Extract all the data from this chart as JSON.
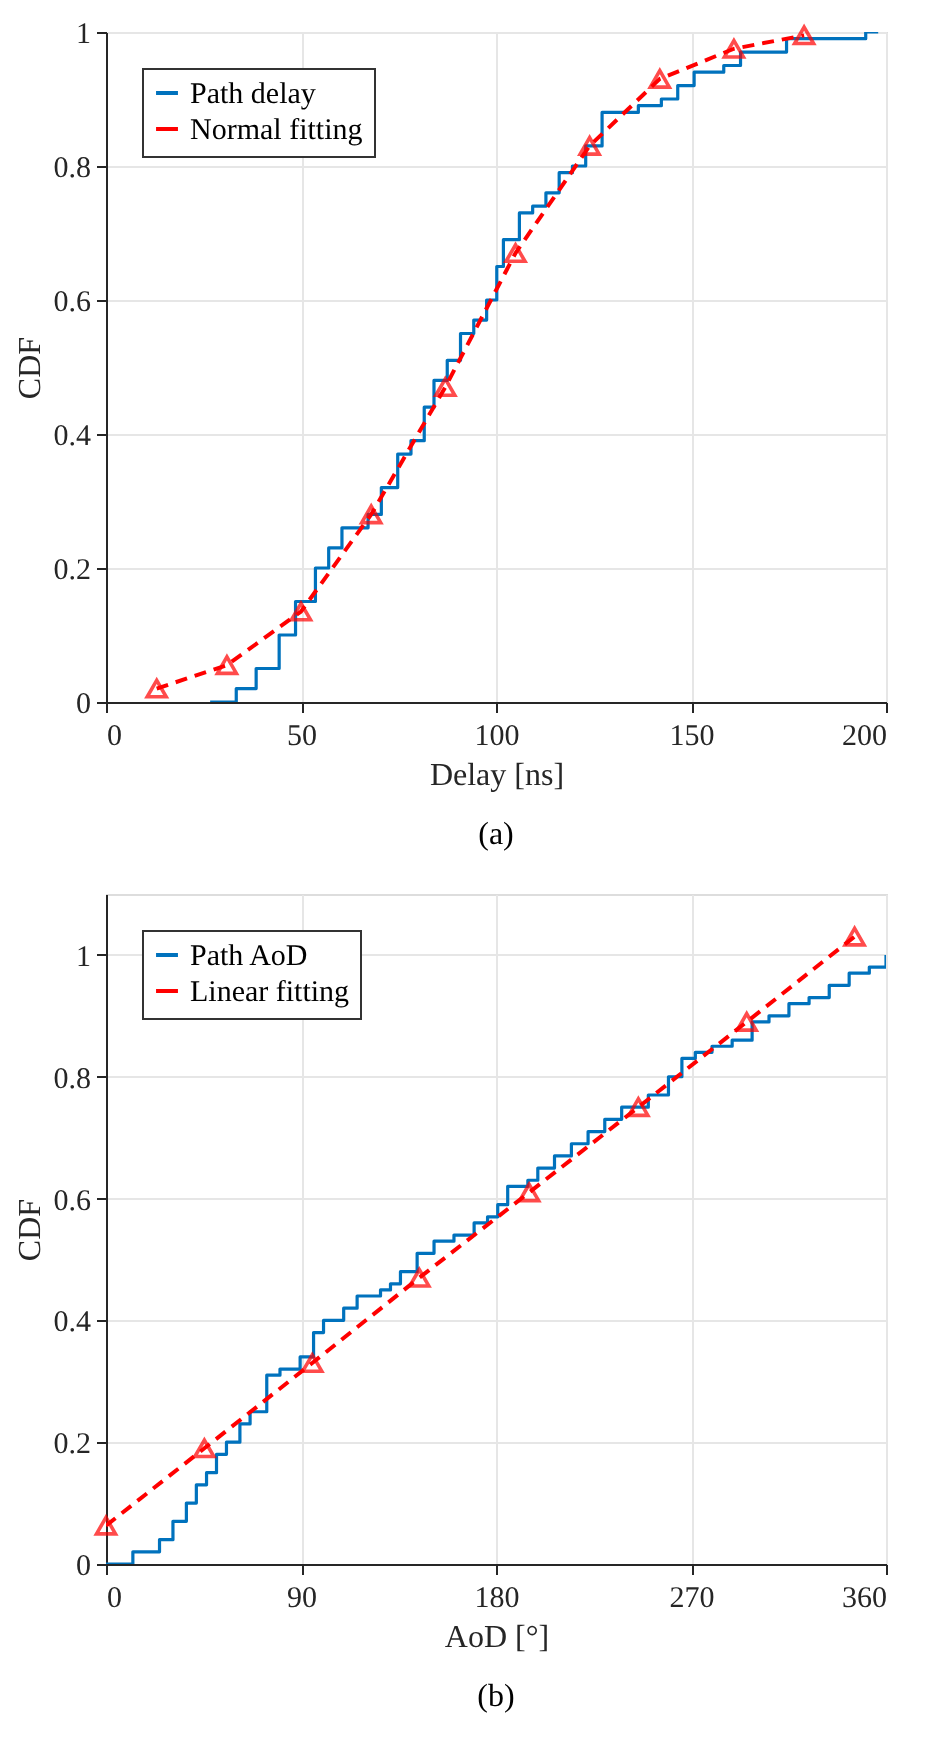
{
  "chart_data": [
    {
      "type": "line",
      "title": "(a)",
      "xlabel": "Delay [ns]",
      "ylabel": "CDF",
      "xlim": [
        0,
        200
      ],
      "xticks": [
        0,
        50,
        100,
        150,
        200
      ],
      "ylim": [
        0,
        1
      ],
      "yticks": [
        0,
        0.2,
        0.4,
        0.6,
        0.8,
        1
      ],
      "grid": true,
      "legend": "top left",
      "series": [
        {
          "name": "Path delay",
          "type": "step",
          "color": "#0072bd",
          "line_style": "solid",
          "marker": "none",
          "x": [
            26.7,
            33.4,
            38.5,
            44.4,
            48.6,
            53.7,
            57.1,
            60.5,
            63,
            67.2,
            70.6,
            74.8,
            78.2,
            81.6,
            84.1,
            87.5,
            90.9,
            94.3,
            97.6,
            100.2,
            101.9,
            106,
            109.4,
            112.8,
            116.2,
            119.6,
            123,
            127.2,
            131.4,
            136.5,
            142.4,
            146.6,
            150.8,
            158.4,
            162.7,
            170.3,
            174.5,
            190.5,
            194.8,
            198
          ],
          "values": [
            0,
            0.02,
            0.05,
            0.1,
            0.15,
            0.2,
            0.23,
            0.26,
            0.26,
            0.28,
            0.32,
            0.37,
            0.39,
            0.44,
            0.48,
            0.51,
            0.55,
            0.57,
            0.6,
            0.65,
            0.69,
            0.73,
            0.74,
            0.76,
            0.79,
            0.8,
            0.83,
            0.88,
            0.88,
            0.89,
            0.9,
            0.92,
            0.94,
            0.95,
            0.97,
            0.97,
            0.99,
            0.99,
            1,
            1
          ]
        },
        {
          "name": "Normal fitting",
          "color": "#ff0000",
          "line_style": "dashed",
          "marker": "triangle",
          "x": [
            13,
            31,
            50,
            68,
            87,
            105,
            124,
            142,
            161,
            179
          ],
          "values": [
            0.02,
            0.055,
            0.135,
            0.28,
            0.47,
            0.67,
            0.83,
            0.93,
            0.975,
            0.995
          ]
        }
      ]
    },
    {
      "type": "line",
      "title": "(b)",
      "xlabel": "AoD [°]",
      "ylabel": "CDF",
      "xlim": [
        0,
        360
      ],
      "xticks": [
        0,
        90,
        180,
        270,
        360
      ],
      "ylim": [
        0,
        1.1
      ],
      "yticks": [
        0,
        0.2,
        0.4,
        0.6,
        0.8,
        1
      ],
      "grid": true,
      "legend": "top left",
      "series": [
        {
          "name": "Path AoD",
          "type": "step",
          "color": "#0072bd",
          "line_style": "solid",
          "marker": "none",
          "x": [
            0,
            12.4,
            24.7,
            30.9,
            37.1,
            41.7,
            46.4,
            51,
            55.6,
            61.8,
            66.5,
            74.2,
            80.3,
            89.6,
            95.8,
            100.4,
            109.7,
            115.9,
            126.7,
            131.3,
            135.9,
            143.6,
            151.4,
            160.6,
            169.9,
            176.1,
            180.8,
            185.4,
            194.7,
            199.3,
            207,
            214.8,
            222.5,
            230.2,
            238,
            250.3,
            259.6,
            265.8,
            272,
            279.7,
            289,
            298.2,
            306,
            315.2,
            324.5,
            333.8,
            343,
            352.3,
            360
          ],
          "values": [
            0,
            0.02,
            0.04,
            0.07,
            0.1,
            0.13,
            0.15,
            0.18,
            0.2,
            0.23,
            0.25,
            0.31,
            0.32,
            0.34,
            0.38,
            0.4,
            0.42,
            0.44,
            0.45,
            0.46,
            0.48,
            0.51,
            0.53,
            0.54,
            0.56,
            0.57,
            0.59,
            0.62,
            0.63,
            0.65,
            0.67,
            0.69,
            0.71,
            0.73,
            0.75,
            0.77,
            0.8,
            0.83,
            0.84,
            0.85,
            0.86,
            0.89,
            0.9,
            0.92,
            0.93,
            0.95,
            0.97,
            0.98,
            1
          ]
        },
        {
          "name": "Linear fitting",
          "color": "#ff0000",
          "line_style": "dashed",
          "marker": "triangle",
          "x": [
            0,
            45.4,
            95.2,
            144.6,
            195.3,
            245.7,
            295.7,
            345.5
          ],
          "values": [
            0.063,
            0.19,
            0.33,
            0.47,
            0.61,
            0.75,
            0.89,
            1.03
          ]
        }
      ]
    }
  ]
}
